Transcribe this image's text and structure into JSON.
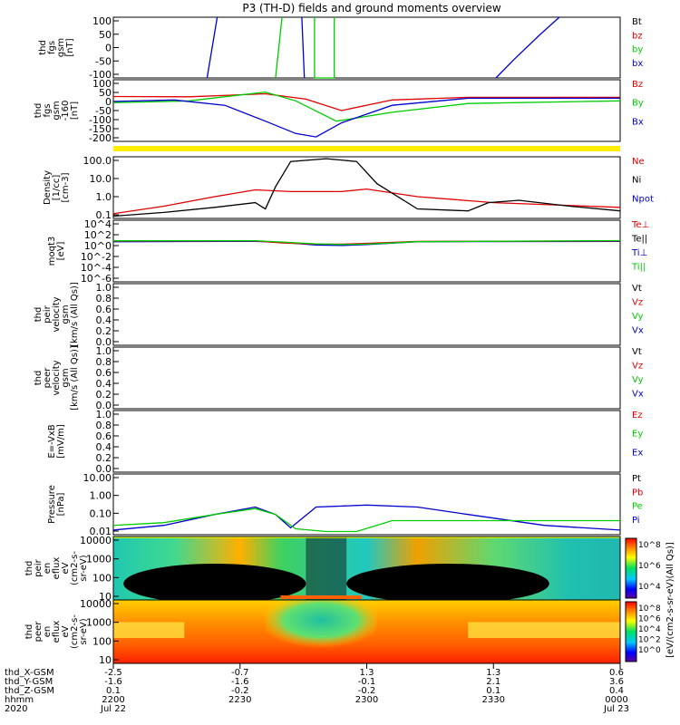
{
  "title": "P3 (TH-D) fields and ground moments overview",
  "colors": {
    "black": "#000000",
    "red": "#dd0000",
    "green": "#00cc00",
    "blue": "#0000cc",
    "yellow": "#ffee00",
    "frame": "#000000"
  },
  "chart_data": [
    {
      "type": "line",
      "ylabel_lines": [
        "thd",
        "fgs",
        "gsm",
        "[nT]"
      ],
      "yticks": [
        "100",
        "50",
        "0",
        "-50",
        "-100"
      ],
      "ylim": [
        -100,
        100
      ],
      "legend": [
        {
          "label": "Bt",
          "color": "black"
        },
        {
          "label": "bz",
          "color": "red"
        },
        {
          "label": "by",
          "color": "green"
        },
        {
          "label": "bx",
          "color": "blue"
        }
      ],
      "series": [
        {
          "name": "by",
          "color": "green",
          "x": [
            0.32,
            0.333
          ],
          "y": [
            -100,
            100
          ]
        },
        {
          "name": "by2",
          "color": "green",
          "x": [
            0.397,
            0.397,
            0.436,
            0.436
          ],
          "y": [
            100,
            -100,
            -100,
            100
          ]
        },
        {
          "name": "bx",
          "color": "blue",
          "x": [
            0.185,
            0.205
          ],
          "y": [
            -100,
            100
          ]
        },
        {
          "name": "bx2",
          "color": "blue",
          "x": [
            0.372,
            0.377
          ],
          "y": [
            100,
            -100
          ]
        },
        {
          "name": "bx3",
          "color": "blue",
          "x": [
            0.755,
            0.79,
            0.84,
            0.88
          ],
          "y": [
            -100,
            -40,
            40,
            100
          ]
        }
      ]
    },
    {
      "type": "line",
      "ylabel_lines": [
        "thd",
        "fgs",
        "gsm",
        "-160",
        "[nT]"
      ],
      "yticks": [
        "100",
        "50",
        "0",
        "-50",
        "-100",
        "-150",
        "-200"
      ],
      "ylim": [
        -225,
        125
      ],
      "legend": [
        {
          "label": "Bz",
          "color": "red"
        },
        {
          "label": "By",
          "color": "green"
        },
        {
          "label": "Bx",
          "color": "blue"
        }
      ],
      "series": [
        {
          "name": "Bz",
          "color": "red",
          "x": [
            0,
            0.15,
            0.3,
            0.38,
            0.45,
            0.55,
            0.7,
            1
          ],
          "y": [
            30,
            28,
            45,
            15,
            -50,
            10,
            25,
            25
          ]
        },
        {
          "name": "By",
          "color": "green",
          "x": [
            0,
            0.15,
            0.3,
            0.36,
            0.44,
            0.55,
            0.7,
            1
          ],
          "y": [
            -5,
            5,
            55,
            5,
            -110,
            -60,
            -10,
            5
          ]
        },
        {
          "name": "Bx",
          "color": "blue",
          "x": [
            0,
            0.12,
            0.22,
            0.3,
            0.36,
            0.4,
            0.45,
            0.55,
            0.7,
            1
          ],
          "y": [
            2,
            10,
            -20,
            -110,
            -180,
            -200,
            -120,
            -20,
            20,
            20
          ]
        }
      ]
    },
    {
      "type": "line",
      "ylabel_lines": [
        "Density",
        "[1/cc]",
        "[cm-3]"
      ],
      "yticks": [
        "100.0",
        "10.0",
        "1.0",
        "0.1"
      ],
      "ylim_log": [
        -1.3,
        2.6
      ],
      "legend": [
        {
          "label": "Ne",
          "color": "red"
        },
        {
          "label": "Ni",
          "color": "black"
        },
        {
          "label": "Npot",
          "color": "blue"
        }
      ],
      "series": [
        {
          "name": "Ne",
          "color": "red",
          "x": [
            0,
            0.1,
            0.2,
            0.28,
            0.35,
            0.45,
            0.5,
            0.6,
            0.75,
            1
          ],
          "y": [
            0.1,
            0.3,
            1.2,
            3.2,
            2.5,
            2.5,
            3.6,
            1.2,
            0.5,
            0.25
          ]
        },
        {
          "name": "Ni",
          "color": "black",
          "x": [
            0,
            0.1,
            0.2,
            0.28,
            0.3,
            0.32,
            0.35,
            0.42,
            0.48,
            0.52,
            0.6,
            0.7,
            0.74,
            0.8,
            0.9,
            1
          ],
          "y": [
            0.07,
            0.12,
            0.25,
            0.5,
            0.2,
            5,
            200,
            300,
            200,
            8,
            0.2,
            0.15,
            0.5,
            0.7,
            0.3,
            0.15
          ]
        }
      ]
    },
    {
      "type": "line",
      "ylabel_lines": [
        "moqt3",
        "[eV]"
      ],
      "yticks": [
        "10^4",
        "10^2",
        "10^0",
        "10^-2",
        "10^-4",
        "10^-6"
      ],
      "ylim_log": [
        -7,
        4.2
      ],
      "legend": [
        {
          "label": "Te⊥",
          "color": "red"
        },
        {
          "label": "Te||",
          "color": "black"
        },
        {
          "label": "Ti⊥",
          "color": "blue"
        },
        {
          "label": "Ti||",
          "color": "green"
        }
      ],
      "series": [
        {
          "name": "Ti",
          "color": "blue",
          "x": [
            0,
            0.28,
            0.33,
            0.4,
            0.45,
            0.5,
            0.6,
            1
          ],
          "y": [
            2,
            2.3,
            1.5,
            0.5,
            0.4,
            0.6,
            2,
            2.2
          ]
        },
        {
          "name": "Te",
          "color": "red",
          "x": [
            0,
            0.28,
            0.33,
            0.4,
            0.45,
            0.5,
            0.6,
            1
          ],
          "y": [
            2.6,
            2.8,
            1.2,
            0.7,
            0.7,
            1.0,
            2.2,
            2.7
          ]
        },
        {
          "name": "Tepar",
          "color": "green",
          "x": [
            0,
            0.28,
            0.33,
            0.4,
            0.45,
            0.5,
            0.6,
            1
          ],
          "y": [
            2.9,
            3.0,
            1.8,
            0.8,
            0.6,
            0.7,
            2.0,
            3.1
          ]
        }
      ]
    },
    {
      "type": "line",
      "ylabel_lines": [
        "thd",
        "peir",
        "velocity",
        "gsm",
        "[km/s (All Qs)]"
      ],
      "yticks": [
        "1.0",
        "0.8",
        "0.6",
        "0.4",
        "0.2",
        "0.0"
      ],
      "ylim": [
        0,
        1
      ],
      "legend": [
        {
          "label": "Vt",
          "color": "black"
        },
        {
          "label": "Vz",
          "color": "red"
        },
        {
          "label": "Vy",
          "color": "green"
        },
        {
          "label": "Vx",
          "color": "blue"
        }
      ],
      "series": []
    },
    {
      "type": "line",
      "ylabel_lines": [
        "thd",
        "peer",
        "velocity",
        "gsm",
        "[km/s (All Qs)]"
      ],
      "yticks": [
        "1.0",
        "0.8",
        "0.6",
        "0.4",
        "0.2",
        "0.0"
      ],
      "ylim": [
        0,
        1
      ],
      "legend": [
        {
          "label": "Vt",
          "color": "black"
        },
        {
          "label": "Vz",
          "color": "red"
        },
        {
          "label": "Vy",
          "color": "green"
        },
        {
          "label": "Vx",
          "color": "blue"
        }
      ],
      "series": []
    },
    {
      "type": "line",
      "ylabel_lines": [
        "E=-VxB",
        "[mV/m]"
      ],
      "yticks": [
        "1.0",
        "0.8",
        "0.6",
        "0.4",
        "0.2",
        "0.0"
      ],
      "ylim": [
        0,
        1
      ],
      "legend": [
        {
          "label": "Ez",
          "color": "red"
        },
        {
          "label": "Ey",
          "color": "green"
        },
        {
          "label": "Ex",
          "color": "blue"
        }
      ],
      "series": []
    },
    {
      "type": "line",
      "ylabel_lines": [
        "Pressure",
        "[nPa]"
      ],
      "yticks": [
        "10.00",
        "1.00",
        "0.10",
        "0.01"
      ],
      "ylim_log": [
        -2.6,
        1.3
      ],
      "legend": [
        {
          "label": "Pt",
          "color": "black"
        },
        {
          "label": "Pb",
          "color": "red"
        },
        {
          "label": "Pe",
          "color": "green"
        },
        {
          "label": "Pi",
          "color": "blue"
        }
      ],
      "series": [
        {
          "name": "Pi",
          "color": "blue",
          "x": [
            0,
            0.1,
            0.2,
            0.28,
            0.32,
            0.35,
            0.4,
            0.5,
            0.6,
            0.7,
            0.85,
            1
          ],
          "y": [
            0.005,
            0.01,
            0.05,
            0.15,
            0.05,
            0.007,
            0.15,
            0.2,
            0.15,
            0.05,
            0.01,
            0.005
          ]
        },
        {
          "name": "Pe",
          "color": "green",
          "x": [
            0,
            0.1,
            0.2,
            0.28,
            0.32,
            0.36,
            0.42,
            0.48,
            0.55,
            0.65,
            0.8,
            1
          ],
          "y": [
            0.01,
            0.015,
            0.05,
            0.12,
            0.05,
            0.006,
            0.004,
            0.004,
            0.02,
            0.02,
            0.02,
            0.02
          ]
        }
      ]
    },
    {
      "type": "heatmap",
      "ylabel_lines": [
        "thd",
        "peir",
        "en",
        "eflux",
        "eV",
        "(cm2-s-",
        "sr-eV)"
      ],
      "yticks": [
        "10000",
        "1000",
        "100",
        "10"
      ],
      "colorbar_label": "[eV/(cm2-s-sr-eV)(All Qs)]",
      "colorbar_ticks": [
        "10^8",
        "10^6",
        "10^4"
      ]
    },
    {
      "type": "heatmap",
      "ylabel_lines": [
        "thd",
        "peer",
        "en",
        "eflux",
        "eV",
        "(cm2-s-",
        "sr-eV)"
      ],
      "yticks": [
        "10000",
        "1000",
        "100",
        "10"
      ],
      "colorbar_label": "[eV/(cm2-s-sr-eV)(All Qs)]",
      "colorbar_ticks": [
        "10^8",
        "10^6",
        "10^4",
        "10^2",
        "10^0"
      ]
    }
  ],
  "x_axis": {
    "row_labels": [
      "thd_X-GSM",
      "thd_Y-GSM",
      "thd_Z-GSM",
      "hhmm",
      "2020"
    ],
    "ticks": [
      {
        "pos": 0.0,
        "vals": [
          "-2.5",
          "-1.6",
          "0.1",
          "2200",
          "Jul 22"
        ]
      },
      {
        "pos": 0.25,
        "vals": [
          "-0.7",
          "-1.6",
          "-0.2",
          "2230",
          ""
        ]
      },
      {
        "pos": 0.5,
        "vals": [
          "1.3",
          "-0.1",
          "-0.2",
          "2300",
          ""
        ]
      },
      {
        "pos": 0.75,
        "vals": [
          "1.3",
          "2.1",
          "0.1",
          "2330",
          ""
        ]
      },
      {
        "pos": 1.0,
        "vals": [
          "0.6",
          "3.6",
          "0.4",
          "0000",
          "Jul 23"
        ]
      }
    ]
  }
}
